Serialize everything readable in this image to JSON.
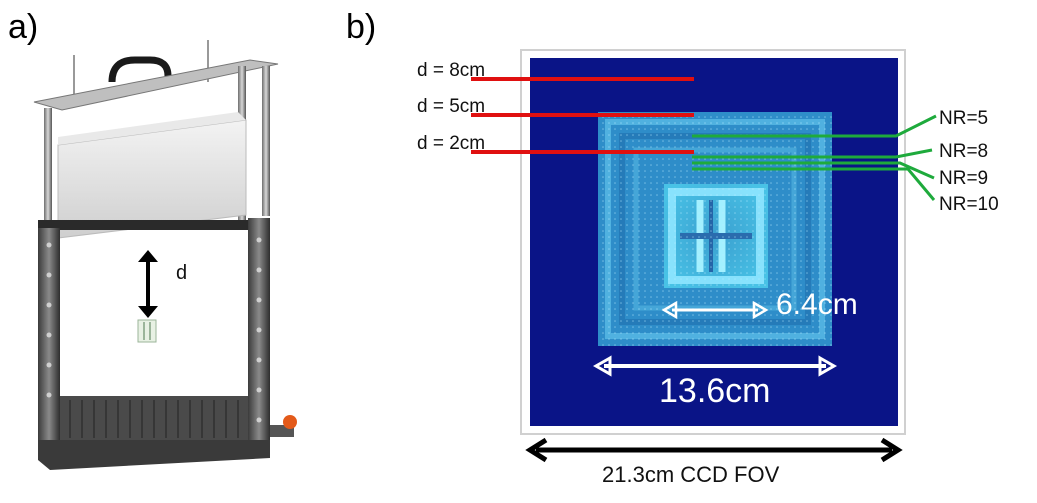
{
  "panels": {
    "a_label": "a)",
    "b_label": "b)"
  },
  "photo": {
    "d_label": "d"
  },
  "image_b": {
    "depth_labels": [
      "d = 8cm",
      "d = 5cm",
      "d = 2cm"
    ],
    "nr_labels": [
      "NR=5",
      "NR=8",
      "NR=9",
      "NR=10"
    ],
    "inner_dim": "6.4cm",
    "outer_dim": "13.6cm",
    "fov": "21.3cm CCD FOV"
  },
  "colors": {
    "background_navy": "#0a1487",
    "depth_line": "#e01010",
    "nr_line": "#1eaa3c"
  }
}
